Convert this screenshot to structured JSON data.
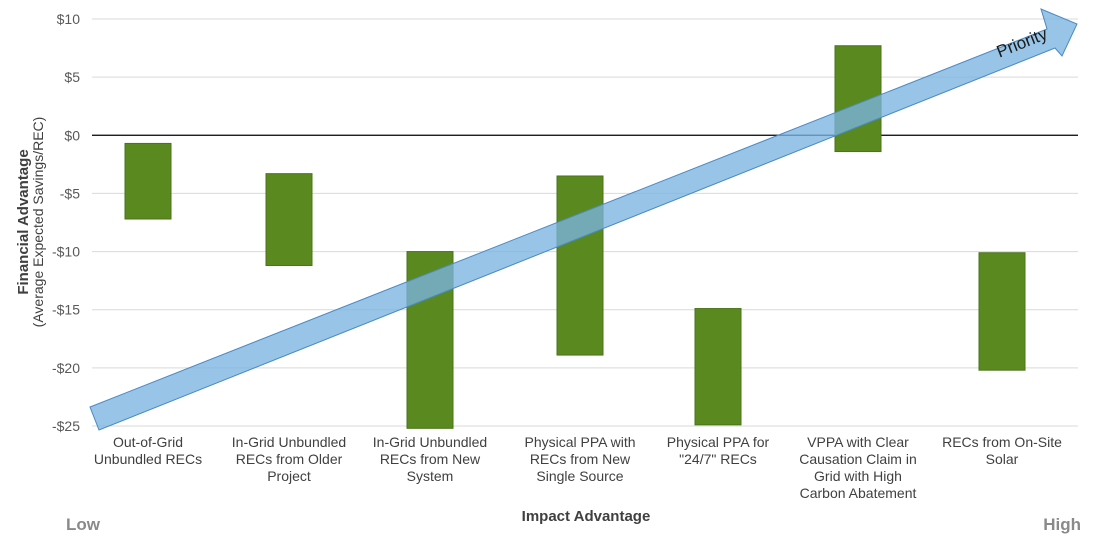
{
  "chart_data": {
    "type": "bar",
    "subtype": "floating-range",
    "ylabel": "Financial Advantage",
    "ylabel_sub": "(Average Expected Savings/REC)",
    "xlabel": "Impact Advantage",
    "x_low_label": "Low",
    "x_high_label": "High",
    "arrow_label": "Priority",
    "ylim": [
      -25,
      10
    ],
    "y_ticks": [
      10,
      5,
      0,
      -5,
      -10,
      -15,
      -20,
      -25
    ],
    "y_tick_labels": [
      "$10",
      "$5",
      "$0",
      "-$5",
      "-$10",
      "-$15",
      "-$20",
      "-$25"
    ],
    "grid": true,
    "categories": [
      [
        "Out-of-Grid",
        "Unbundled RECs"
      ],
      [
        "In-Grid Unbundled",
        "RECs from Older",
        "Project"
      ],
      [
        "In-Grid Unbundled",
        "RECs from New",
        "System"
      ],
      [
        "Physical PPA with",
        "RECs from New",
        "Single Source"
      ],
      [
        "Physical PPA for",
        "\"24/7\" RECs"
      ],
      [
        "VPPA with Clear",
        "Causation Claim in",
        "Grid with High",
        "Carbon Abatement"
      ],
      [
        "RECs from On-Site",
        "Solar"
      ]
    ],
    "ranges": [
      {
        "low": -7.2,
        "high": -0.7
      },
      {
        "low": -11.2,
        "high": -3.3
      },
      {
        "low": -25.2,
        "high": -10.0
      },
      {
        "low": -18.9,
        "high": -3.5
      },
      {
        "low": -24.9,
        "high": -14.9
      },
      {
        "low": -1.4,
        "high": 7.7
      },
      {
        "low": -20.2,
        "high": -10.1
      }
    ],
    "colors": {
      "bar": "#5a8a1f",
      "bar_stroke": "#4a7418",
      "arrow_fill": "#7ab3e0",
      "arrow_stroke": "#4a8ac4",
      "grid": "#d9d9d9",
      "zero_line": "#000000"
    }
  }
}
